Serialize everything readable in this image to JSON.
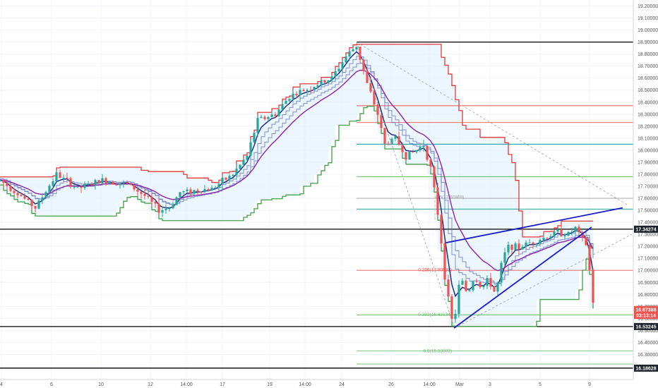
{
  "colors": {
    "up": "#26a69a",
    "down": "#ef5350",
    "donchian": "#e53935",
    "donchian_lower": "#43a047",
    "donchian_fill": "#e3f2fd",
    "ma_fast": "#1a237e",
    "ma_mid": "#5c6bc0",
    "ma_slow": "#8e24aa",
    "trendline": "#1b1bcc",
    "black_line": "#000000",
    "fib_red": "#ef5350",
    "fib_teal": "#26a69a",
    "fib_green": "#66bb6a",
    "fib_blue": "#0097a7",
    "grid": "#f0f3fa"
  },
  "chart_data": {
    "type": "candlestick",
    "y_axis": {
      "range": [
        16.15,
        19.25
      ],
      "ticks": [
        "19.20000",
        "19.10000",
        "19.00000",
        "18.90000",
        "18.80000",
        "18.70000",
        "18.60000",
        "18.50000",
        "18.40000",
        "18.30000",
        "18.20000",
        "18.10000",
        "18.00000",
        "17.90000",
        "17.80000",
        "17.70000",
        "17.60000",
        "17.50000",
        "17.40000",
        "17.30000",
        "17.20000",
        "17.10000",
        "17.00000",
        "16.90000",
        "16.80000",
        "16.70000",
        "16.60000",
        "16.50000",
        "16.40000",
        "16.30000",
        "16.20000"
      ]
    },
    "x_axis": {
      "ticks": [
        "4",
        "6",
        "10",
        "12",
        "14:00",
        "17",
        "19",
        "14:00",
        "24",
        "26",
        "14:00",
        "Mar",
        "3",
        "5",
        "9"
      ]
    },
    "horizontal_lines": [
      {
        "value": 18.9,
        "color": "black"
      },
      {
        "value": 17.34274,
        "color": "black"
      },
      {
        "value": 16.53245,
        "color": "black"
      },
      {
        "value": 16.18628,
        "color": "black"
      }
    ],
    "price_tags": [
      {
        "value": "17.34274",
        "price": 17.34274,
        "bg": "#1e222d"
      },
      {
        "value": "16.67388",
        "price": 16.67388,
        "bg": "#ef5350"
      },
      {
        "value": "03:13:14",
        "price": 16.625,
        "bg": "#ef5350"
      },
      {
        "value": "16.53245",
        "price": 16.53245,
        "bg": "#1e222d"
      },
      {
        "value": "16.18628",
        "price": 16.18628,
        "bg": "#1e222d"
      }
    ],
    "fib_labels": [
      {
        "text": "0.236(17.00538)",
        "price": 17.005
      },
      {
        "text": "0.382(16.63134)",
        "price": 16.631
      },
      {
        "text": "0.5(16.33003)",
        "price": 16.33
      }
    ],
    "fib_levels": [
      {
        "value": 18.37,
        "color": "red"
      },
      {
        "value": 18.23,
        "color": "red"
      },
      {
        "value": 18.05,
        "color": "blue"
      },
      {
        "value": 17.78,
        "color": "green"
      },
      {
        "value": 17.6,
        "color": "gray"
      },
      {
        "value": 17.51,
        "color": "teal"
      },
      {
        "value": 17.0,
        "color": "red"
      },
      {
        "value": 16.63,
        "color": "green"
      },
      {
        "value": 16.33,
        "color": "green"
      },
      {
        "value": 16.22,
        "color": "green"
      }
    ],
    "key_points": {
      "high": {
        "label": "24",
        "value": 18.93
      },
      "low": {
        "label": "Mar",
        "value": 16.4
      },
      "last": {
        "label": "9",
        "value": 16.67388
      }
    },
    "partial_label": "0.5(17.60869)"
  }
}
